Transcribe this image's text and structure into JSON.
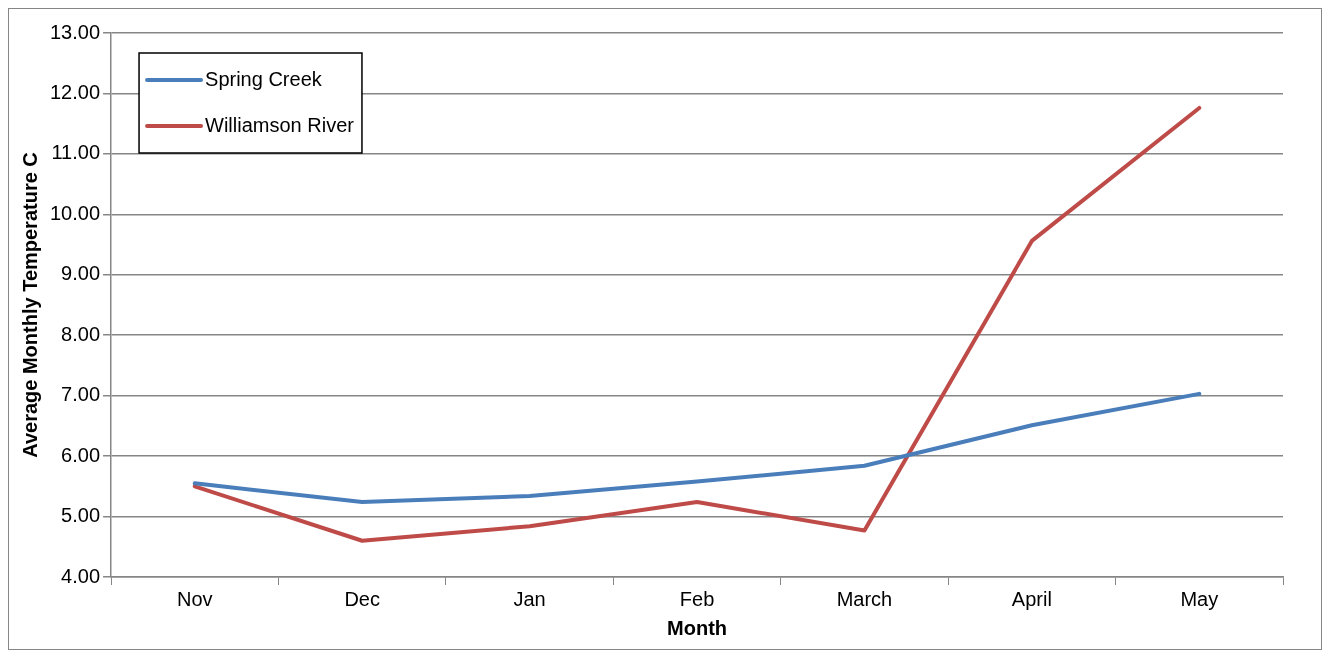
{
  "chart_data": {
    "type": "line",
    "xlabel": "Month",
    "ylabel": "Average Monthly Temperature C",
    "categories": [
      "Nov",
      "Dec",
      "Jan",
      "Feb",
      "March",
      "April",
      "May"
    ],
    "series": [
      {
        "name": "Spring Creek",
        "color": "#4a7ebb",
        "values": [
          5.55,
          5.24,
          5.34,
          5.58,
          5.84,
          6.51,
          7.03
        ]
      },
      {
        "name": "Williamson River",
        "color": "#be4b48",
        "values": [
          5.5,
          4.6,
          4.84,
          5.24,
          4.77,
          9.56,
          11.76
        ]
      }
    ],
    "ylim": [
      4,
      13
    ],
    "yticks": [
      {
        "value": 4,
        "label": "4.00"
      },
      {
        "value": 5,
        "label": "5.00"
      },
      {
        "value": 6,
        "label": "6.00"
      },
      {
        "value": 7,
        "label": "7.00"
      },
      {
        "value": 8,
        "label": "8.00"
      },
      {
        "value": 9,
        "label": "9.00"
      },
      {
        "value": 10,
        "label": "10.00"
      },
      {
        "value": 11,
        "label": "11.00"
      },
      {
        "value": 12,
        "label": "12.00"
      },
      {
        "value": 13,
        "label": "13.00"
      }
    ],
    "grid": "y",
    "legend": "top left",
    "marker": "none",
    "line_style": "solid"
  }
}
